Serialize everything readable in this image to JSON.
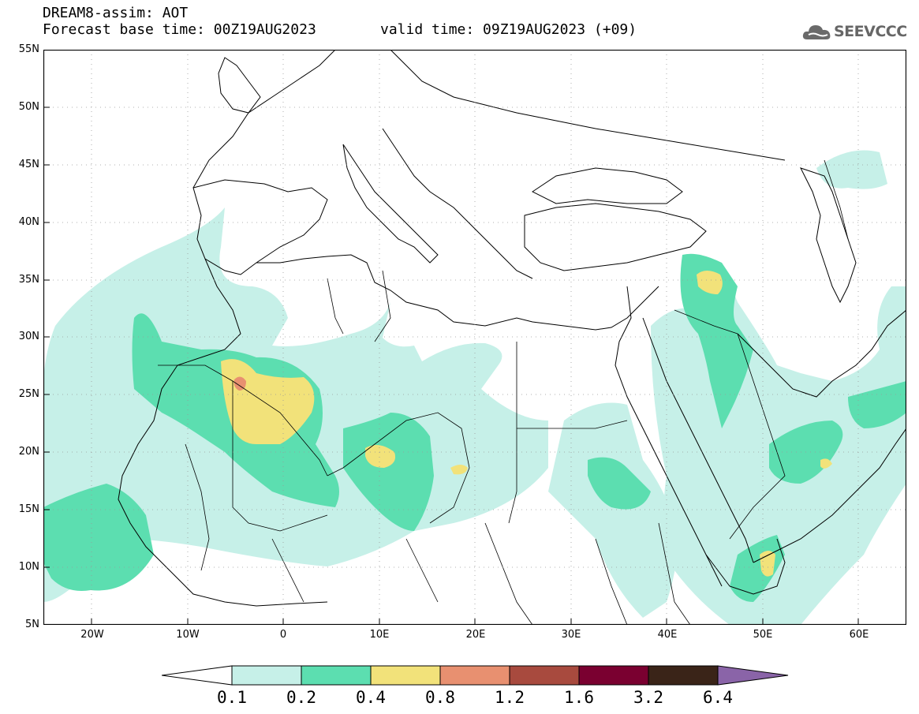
{
  "header": {
    "title": "DREAM8-assim: AOT",
    "base_time": "Forecast base time: 00Z19AUG2023",
    "valid_time": "valid time: 09Z19AUG2023 (+09)"
  },
  "logo": {
    "text": "SEEVCCC",
    "icon": "cloud-icon"
  },
  "map": {
    "lat_labels": [
      "55N",
      "50N",
      "45N",
      "40N",
      "35N",
      "30N",
      "25N",
      "20N",
      "15N",
      "10N",
      "5N"
    ],
    "lon_labels": [
      "20W",
      "10W",
      "0",
      "10E",
      "20E",
      "30E",
      "40E",
      "50E",
      "60E"
    ],
    "lon_range": [
      -25,
      65
    ],
    "lat_range": [
      5,
      55
    ],
    "grid": "dotted"
  },
  "colorbar": {
    "labels": [
      "0.1",
      "0.2",
      "0.4",
      "0.8",
      "1.2",
      "1.6",
      "3.2",
      "6.4"
    ],
    "colors": {
      "under": "#ffffff",
      "bins": [
        "#c6f0e8",
        "#5cdeb0",
        "#f2e27a",
        "#e89070",
        "#a84a3e",
        "#7a0030",
        "#3a2418"
      ],
      "over": "#8a64a8"
    }
  }
}
